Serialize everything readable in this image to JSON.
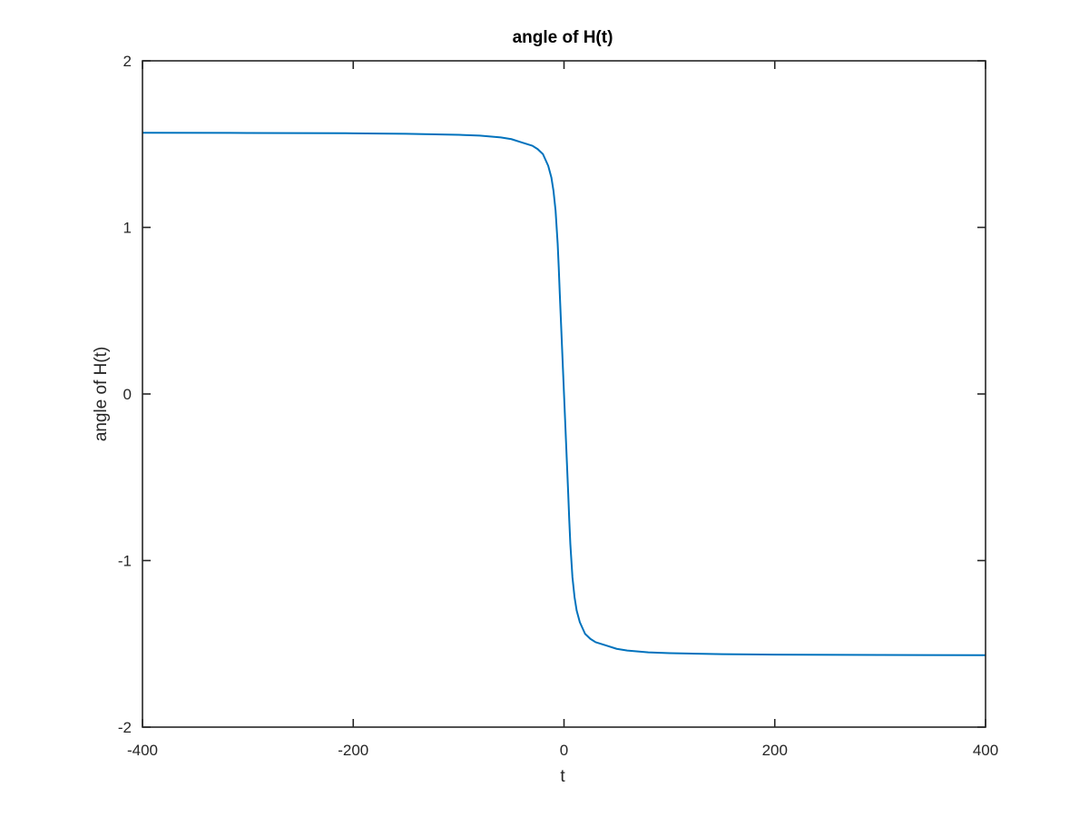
{
  "chart_data": {
    "type": "line",
    "title": "angle of H(t)",
    "xlabel": "t",
    "ylabel": "angle of H(t)",
    "xlim": [
      -400,
      400
    ],
    "ylim": [
      -2,
      2
    ],
    "xticks": [
      -400,
      -200,
      0,
      200,
      400
    ],
    "yticks": [
      -2,
      -1,
      0,
      1,
      2
    ],
    "xtick_labels": [
      "-400",
      "-200",
      "0",
      "200",
      "400"
    ],
    "ytick_labels": [
      "-2",
      "-1",
      "0",
      "1",
      "2"
    ],
    "grid": false,
    "box": true,
    "series": [
      {
        "color": "#0072bd",
        "x": [
          -400,
          -300,
          -200,
          -150,
          -100,
          -80,
          -60,
          -50,
          -40,
          -30,
          -25,
          -20,
          -15,
          -12,
          -10,
          -8,
          -6,
          -5,
          -4,
          -3,
          -2,
          -1,
          0,
          1,
          2,
          3,
          4,
          5,
          6,
          8,
          10,
          12,
          15,
          20,
          25,
          30,
          40,
          50,
          60,
          80,
          100,
          150,
          200,
          300,
          400
        ],
        "y": [
          1.568,
          1.567,
          1.565,
          1.562,
          1.556,
          1.551,
          1.54,
          1.53,
          1.51,
          1.49,
          1.47,
          1.44,
          1.37,
          1.3,
          1.22,
          1.1,
          0.9,
          0.76,
          0.6,
          0.45,
          0.3,
          0.15,
          0,
          -0.15,
          -0.3,
          -0.45,
          -0.6,
          -0.76,
          -0.9,
          -1.1,
          -1.22,
          -1.3,
          -1.37,
          -1.44,
          -1.47,
          -1.49,
          -1.51,
          -1.53,
          -1.54,
          -1.551,
          -1.556,
          -1.562,
          -1.565,
          -1.567,
          -1.568
        ]
      }
    ]
  }
}
